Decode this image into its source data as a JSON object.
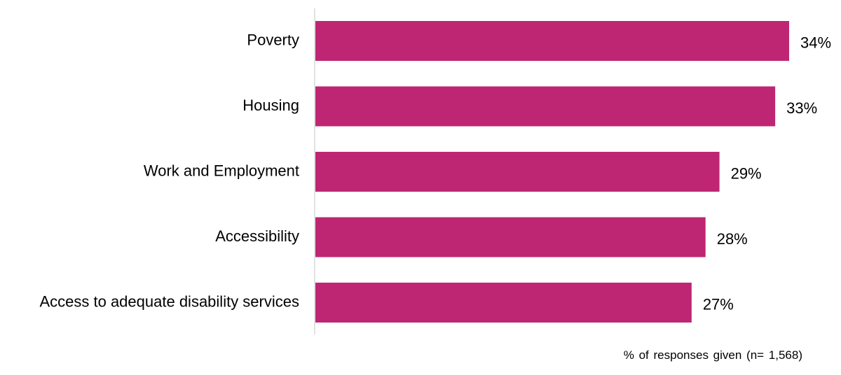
{
  "chart_data": {
    "type": "bar",
    "orientation": "horizontal",
    "categories": [
      "Poverty",
      "Housing",
      "Work and Employment",
      "Accessibility ",
      "Access to adequate disability services"
    ],
    "values": [
      34,
      33,
      29,
      28,
      27
    ],
    "value_labels": [
      "34%",
      "33%",
      "29%",
      "28%",
      "27%"
    ],
    "xlabel": "% of responses given (n= 1,568)",
    "ylabel": "",
    "xlim": [
      0,
      34
    ],
    "grid": false,
    "legend": "none",
    "bar_color": "#BE2673",
    "axis_color": "#D9D9D9"
  }
}
